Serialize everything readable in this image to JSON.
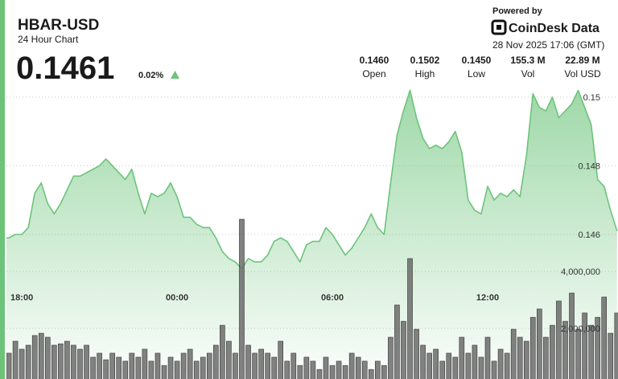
{
  "header": {
    "title": "HBAR-USD",
    "subtitle": "24 Hour Chart",
    "price": "0.1461",
    "change": "0.02%",
    "stats": [
      {
        "value": "0.1460",
        "label": "Open"
      },
      {
        "value": "0.1502",
        "label": "High"
      },
      {
        "value": "0.1450",
        "label": "Low"
      },
      {
        "value": "155.3 M",
        "label": "Vol"
      },
      {
        "value": "22.89 M",
        "label": "Vol USD"
      }
    ],
    "powered_by": "Powered by",
    "brand": "CoinDesk Data",
    "timestamp": "28 Nov 2025 17:06 (GMT)"
  },
  "chart_data": [
    {
      "type": "area",
      "color": "#6cc47a",
      "categories": [
        null,
        null,
        null,
        "18:00",
        null,
        null,
        null,
        null,
        null,
        null,
        null,
        null,
        null,
        null,
        null,
        null,
        null,
        null,
        null,
        null,
        null,
        null,
        null,
        null,
        null,
        null,
        null,
        "00:00",
        null,
        null,
        null,
        null,
        null,
        null,
        null,
        null,
        null,
        null,
        null,
        null,
        null,
        null,
        null,
        null,
        null,
        null,
        null,
        null,
        null,
        null,
        null,
        "06:00",
        null,
        null,
        null,
        null,
        null,
        null,
        null,
        null,
        null,
        null,
        null,
        null,
        null,
        null,
        null,
        null,
        null,
        null,
        null,
        null,
        null,
        null,
        null,
        "12:00",
        null,
        null,
        null,
        null,
        null,
        null,
        null,
        null,
        null,
        null,
        null,
        null,
        null,
        null,
        null,
        null,
        null,
        null,
        null,
        null
      ],
      "values": [
        0.1459,
        0.1459,
        0.146,
        0.146,
        0.1462,
        0.1472,
        0.1475,
        0.1469,
        0.1466,
        0.1469,
        0.1473,
        0.1477,
        0.1477,
        0.1478,
        0.1479,
        0.148,
        0.1482,
        0.148,
        0.1478,
        0.1476,
        0.1479,
        0.1472,
        0.1466,
        0.1472,
        0.1471,
        0.1472,
        0.1475,
        0.1471,
        0.1465,
        0.1465,
        0.1463,
        0.1462,
        0.1462,
        0.1459,
        0.1455,
        0.1453,
        0.1452,
        0.145,
        0.1453,
        0.1452,
        0.1452,
        0.1454,
        0.1458,
        0.1459,
        0.1458,
        0.1455,
        0.1452,
        0.1457,
        0.1458,
        0.1458,
        0.1462,
        0.146,
        0.1457,
        0.1454,
        0.1456,
        0.1459,
        0.1462,
        0.1466,
        0.1462,
        0.146,
        0.1475,
        0.1489,
        0.1496,
        0.1502,
        0.1494,
        0.1488,
        0.1485,
        0.1486,
        0.1485,
        0.1487,
        0.149,
        0.1484,
        0.147,
        0.1467,
        0.1466,
        0.1474,
        0.147,
        0.1472,
        0.1471,
        0.1473,
        0.1471,
        0.1483,
        0.1501,
        0.1497,
        0.1496,
        0.15,
        0.1494,
        0.1496,
        0.1498,
        0.1502,
        0.1497,
        0.1492,
        0.1476,
        0.1474,
        0.1467,
        0.1461
      ],
      "ylim": [
        0.142,
        0.1505
      ],
      "yticks": [
        0.146,
        0.148,
        0.15
      ],
      "grid": true
    },
    {
      "type": "bar",
      "color": "#6b6b6b",
      "values": [
        990000,
        1130000,
        1550000,
        1270000,
        1410000,
        1750000,
        1830000,
        1690000,
        1410000,
        1460000,
        1550000,
        1410000,
        1270000,
        1410000,
        990000,
        1130000,
        900000,
        1130000,
        990000,
        850000,
        1130000,
        990000,
        1270000,
        850000,
        1130000,
        700000,
        990000,
        850000,
        1130000,
        1270000,
        850000,
        990000,
        1130000,
        1410000,
        2110000,
        1550000,
        1130000,
        5830000,
        1410000,
        1130000,
        1270000,
        1130000,
        990000,
        1550000,
        850000,
        1130000,
        700000,
        990000,
        850000,
        560000,
        990000,
        700000,
        850000,
        700000,
        1130000,
        990000,
        850000,
        560000,
        850000,
        700000,
        1690000,
        2820000,
        2250000,
        4450000,
        1970000,
        1410000,
        1130000,
        1270000,
        850000,
        1130000,
        990000,
        1690000,
        1130000,
        1410000,
        990000,
        1690000,
        850000,
        1270000,
        1130000,
        1970000,
        1690000,
        1550000,
        2390000,
        2680000,
        1690000,
        2110000,
        2960000,
        2250000,
        3240000,
        1970000,
        2540000,
        2110000,
        2390000,
        3100000,
        1830000,
        2540000
      ],
      "ylim": [
        0,
        6000000
      ],
      "yticks": [
        {
          "value": 2000000,
          "label": "2,000,000"
        },
        {
          "value": 4000000,
          "label": "4,000,000"
        }
      ],
      "grid": true
    }
  ]
}
